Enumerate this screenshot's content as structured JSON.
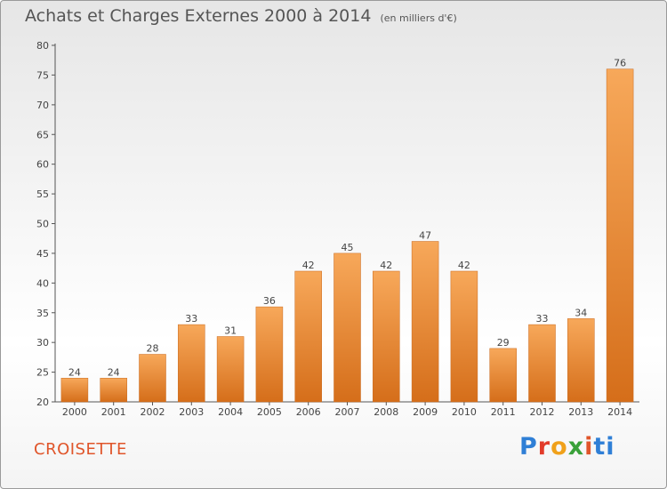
{
  "header": {
    "title": "Achats et Charges Externes 2000 à 2014",
    "unit": "(en milliers d'€)"
  },
  "place_name": "CROISETTE",
  "logo": {
    "text": "Proxiti",
    "letters": [
      "P",
      "r",
      "o",
      "x",
      "i",
      "ti"
    ],
    "colors": [
      "#2f7fd6",
      "#e23b2a",
      "#f0a11a",
      "#3aa13a",
      "#e0552a",
      "#2f7fd6"
    ]
  },
  "chart_data": {
    "type": "bar",
    "title": "Achats et Charges Externes 2000 à 2014",
    "subtitle": "(en milliers d'€)",
    "categories": [
      "2000",
      "2001",
      "2002",
      "2003",
      "2004",
      "2005",
      "2006",
      "2007",
      "2008",
      "2009",
      "2010",
      "2011",
      "2012",
      "2013",
      "2014"
    ],
    "values": [
      24,
      24,
      28,
      33,
      31,
      36,
      42,
      45,
      42,
      47,
      42,
      29,
      33,
      34,
      76
    ],
    "data_labels": [
      "24",
      "24",
      "28",
      "33",
      "31",
      "36",
      "42",
      "45",
      "42",
      "47",
      "42",
      "29",
      "33",
      "34",
      "76"
    ],
    "ylim": [
      20,
      80
    ],
    "yticks": [
      20,
      25,
      30,
      35,
      40,
      45,
      50,
      55,
      60,
      65,
      70,
      75,
      80
    ],
    "grid": false,
    "legend": "none",
    "bar_color_light": "#f7a85a",
    "bar_color_dark": "#d56e1a"
  }
}
